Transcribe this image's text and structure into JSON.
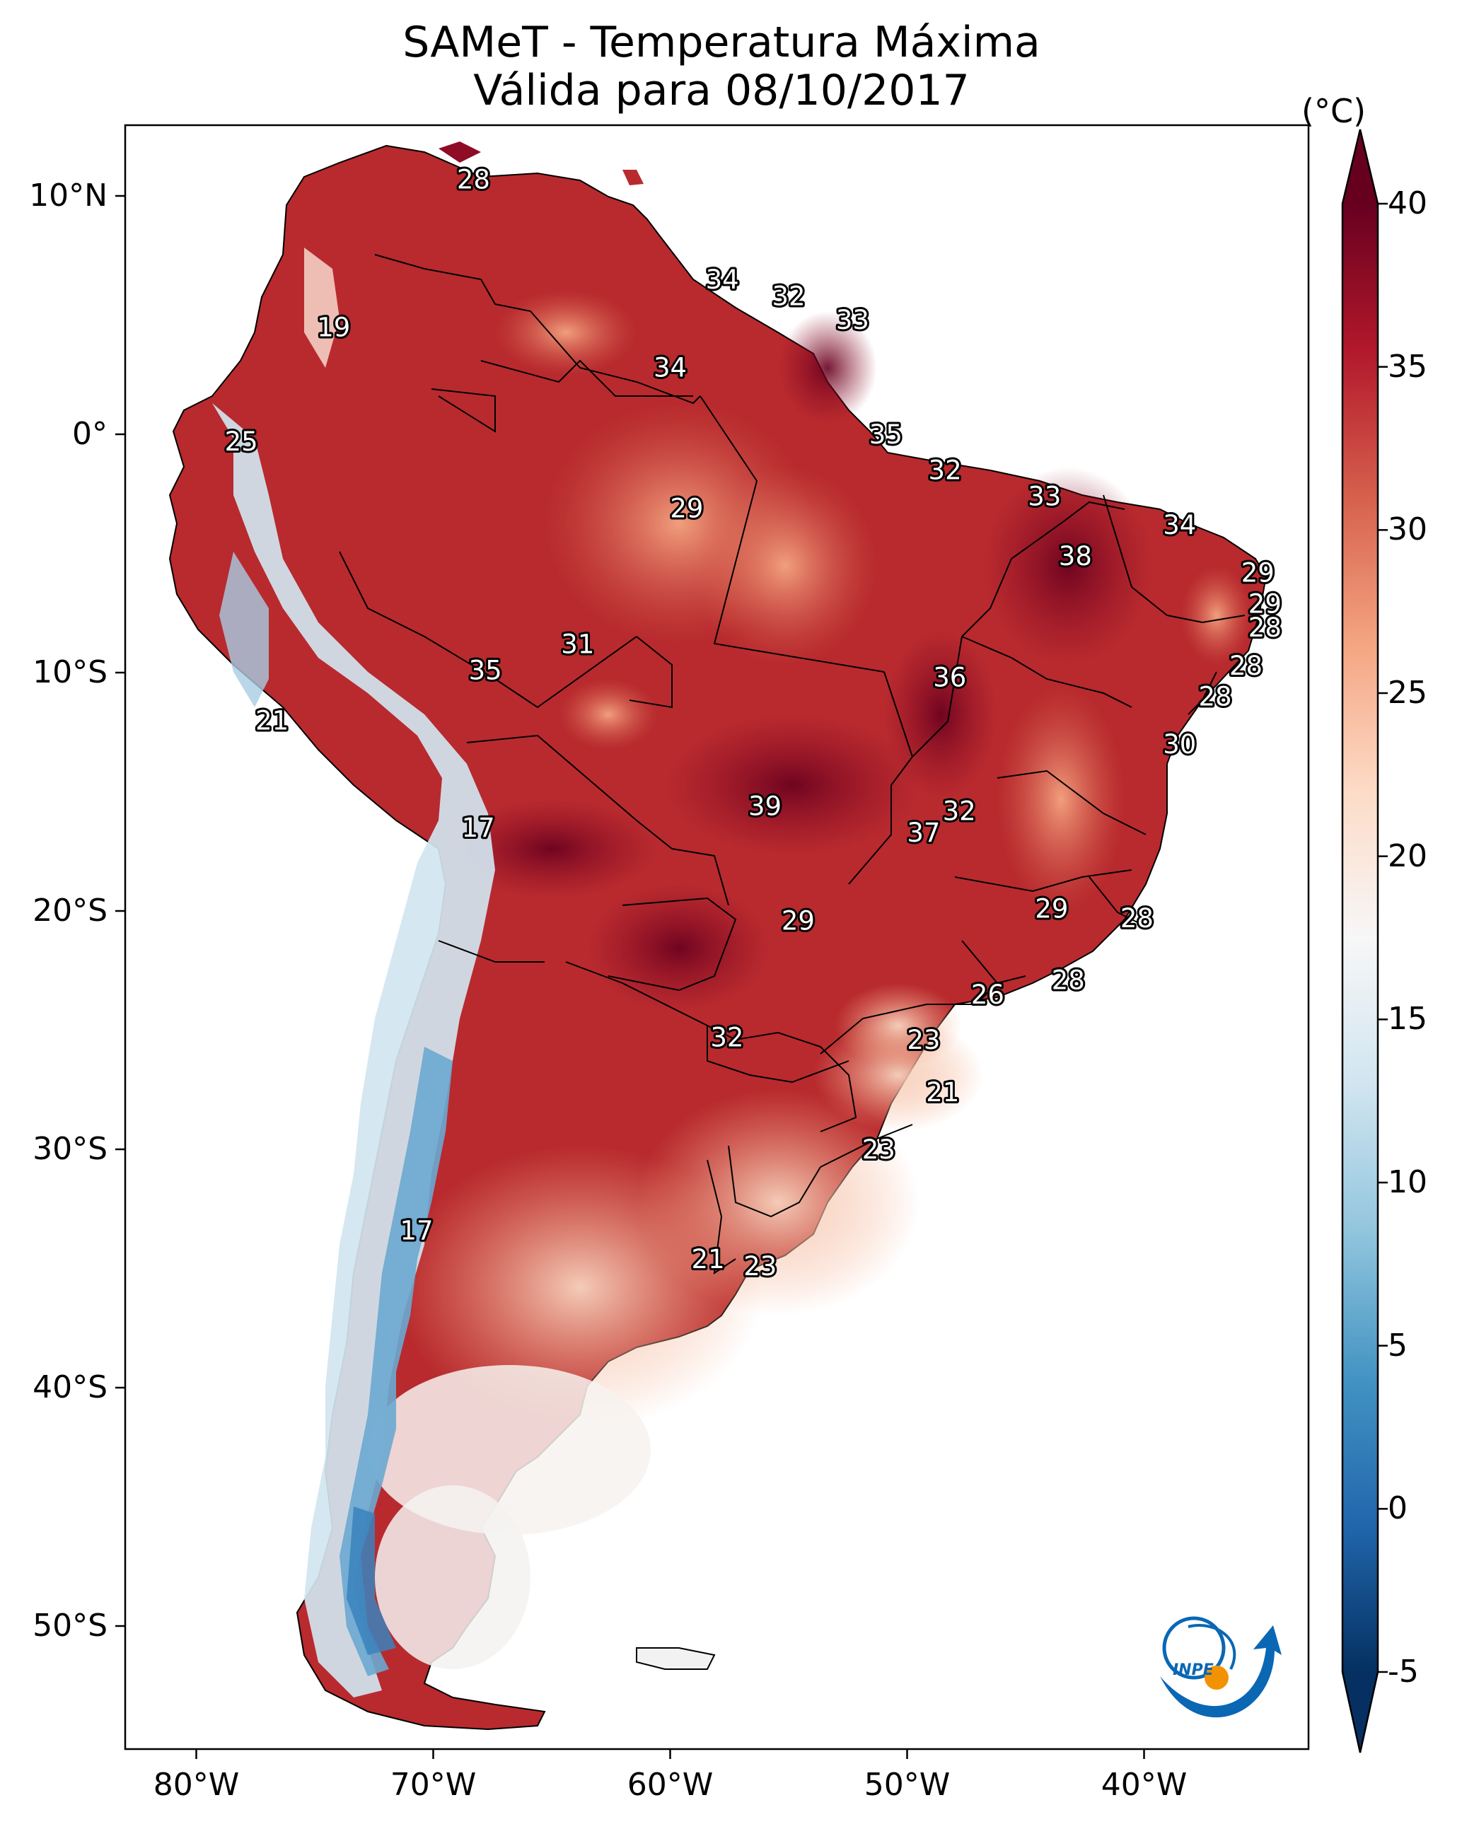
{
  "title": {
    "line1": "SAMeT - Temperatura Máxima",
    "line2": "Válida para 08/10/2017"
  },
  "colorbar": {
    "unit": "(°C)",
    "ticks": [
      "40",
      "35",
      "30",
      "25",
      "20",
      "15",
      "10",
      "5",
      "0",
      "-5"
    ],
    "range": [
      -5,
      40
    ],
    "colors": [
      "#053061",
      "#2166ac",
      "#4393c3",
      "#92c5de",
      "#d1e5f0",
      "#f7f7f7",
      "#fddbc7",
      "#f4a582",
      "#d6604d",
      "#b2182b",
      "#67001f"
    ]
  },
  "axes": {
    "latitude_ticks": [
      "10°N",
      "0°",
      "10°S",
      "20°S",
      "30°S",
      "40°S",
      "50°S"
    ],
    "longitude_ticks": [
      "80°W",
      "70°W",
      "60°W",
      "50°W",
      "40°W"
    ]
  },
  "temperature_labels": [
    {
      "lon": -68.3,
      "lat": 10.7,
      "value": "28"
    },
    {
      "lon": -57.8,
      "lat": 6.5,
      "value": "34"
    },
    {
      "lon": -55.0,
      "lat": 5.8,
      "value": "32"
    },
    {
      "lon": -52.3,
      "lat": 4.8,
      "value": "33"
    },
    {
      "lon": -74.2,
      "lat": 4.5,
      "value": "19"
    },
    {
      "lon": -60.0,
      "lat": 2.8,
      "value": "34"
    },
    {
      "lon": -50.9,
      "lat": 0.0,
      "value": "35"
    },
    {
      "lon": -78.1,
      "lat": -0.3,
      "value": "25"
    },
    {
      "lon": -48.4,
      "lat": -1.5,
      "value": "32"
    },
    {
      "lon": -44.2,
      "lat": -2.6,
      "value": "33"
    },
    {
      "lon": -59.3,
      "lat": -3.1,
      "value": "29"
    },
    {
      "lon": -38.5,
      "lat": -3.8,
      "value": "34"
    },
    {
      "lon": -42.9,
      "lat": -5.1,
      "value": "38"
    },
    {
      "lon": -35.2,
      "lat": -5.8,
      "value": "29"
    },
    {
      "lon": -34.9,
      "lat": -7.1,
      "value": "29"
    },
    {
      "lon": -34.9,
      "lat": -8.1,
      "value": "28"
    },
    {
      "lon": -63.9,
      "lat": -8.8,
      "value": "31"
    },
    {
      "lon": -35.7,
      "lat": -9.7,
      "value": "28"
    },
    {
      "lon": -67.8,
      "lat": -9.9,
      "value": "35"
    },
    {
      "lon": -48.2,
      "lat": -10.2,
      "value": "36"
    },
    {
      "lon": -37.0,
      "lat": -11.0,
      "value": "28"
    },
    {
      "lon": -76.8,
      "lat": -12.0,
      "value": "21"
    },
    {
      "lon": -38.5,
      "lat": -13.0,
      "value": "30"
    },
    {
      "lon": -56.0,
      "lat": -15.6,
      "value": "39"
    },
    {
      "lon": -47.8,
      "lat": -15.8,
      "value": "32"
    },
    {
      "lon": -49.3,
      "lat": -16.7,
      "value": "37"
    },
    {
      "lon": -68.1,
      "lat": -16.5,
      "value": "17"
    },
    {
      "lon": -43.9,
      "lat": -19.9,
      "value": "29"
    },
    {
      "lon": -54.6,
      "lat": -20.4,
      "value": "29"
    },
    {
      "lon": -40.3,
      "lat": -20.3,
      "value": "28"
    },
    {
      "lon": -43.2,
      "lat": -22.9,
      "value": "28"
    },
    {
      "lon": -46.6,
      "lat": -23.5,
      "value": "26"
    },
    {
      "lon": -57.6,
      "lat": -25.3,
      "value": "32"
    },
    {
      "lon": -49.3,
      "lat": -25.4,
      "value": "23"
    },
    {
      "lon": -48.5,
      "lat": -27.6,
      "value": "21"
    },
    {
      "lon": -51.2,
      "lat": -30.0,
      "value": "23"
    },
    {
      "lon": -70.7,
      "lat": -33.4,
      "value": "17"
    },
    {
      "lon": -58.4,
      "lat": -34.6,
      "value": "21"
    },
    {
      "lon": -56.2,
      "lat": -34.9,
      "value": "23"
    }
  ],
  "logo": {
    "text": "INPE"
  }
}
